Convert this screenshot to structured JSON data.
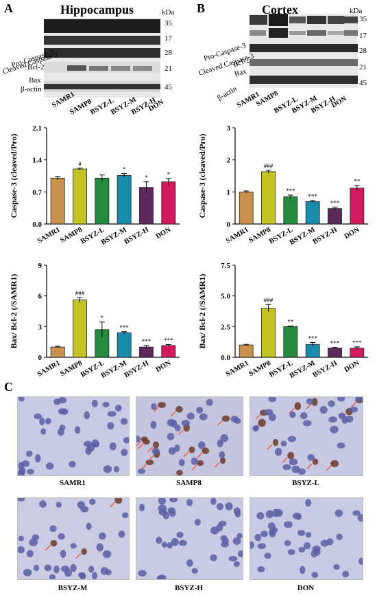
{
  "panels": {
    "A": {
      "letter": "A",
      "title": "Hippocampus"
    },
    "B": {
      "letter": "B",
      "title": "Cortex"
    },
    "C": {
      "letter": "C"
    }
  },
  "western_blot": {
    "unit": "kDa",
    "bands": [
      "Pro-Caspase-3",
      "Cleaved Caspase-3",
      "Bcl-2",
      "Bax",
      "β-actin"
    ],
    "mw": [
      "35",
      "17",
      "28",
      "21",
      "45"
    ],
    "lanes": [
      "SAMR1",
      "SAMP8",
      "BSYZ-L",
      "BSYZ-M",
      "BSYZ-H",
      "DON"
    ]
  },
  "chart_data": [
    {
      "id": "A-caspase",
      "type": "bar",
      "ylabel": "Caspase-3 (cleaved/Pro)",
      "ylim": [
        0,
        2.1
      ],
      "yticks": [
        "0.0",
        "0.7",
        "1.4",
        "2.1"
      ],
      "categories": [
        "SAMR1",
        "SAMP8",
        "BSYZ-L",
        "BSYZ-M",
        "BSYZ-H",
        "DON"
      ],
      "values": [
        1.0,
        1.2,
        1.0,
        1.06,
        0.8,
        0.92
      ],
      "errors": [
        0.04,
        0.02,
        0.07,
        0.04,
        0.12,
        0.07
      ],
      "marks": [
        "",
        "#",
        "",
        "*",
        "*",
        "*"
      ]
    },
    {
      "id": "B-caspase",
      "type": "bar",
      "ylabel": "Caspase-3 (cleaved/Pro)",
      "ylim": [
        0,
        3
      ],
      "yticks": [
        "0",
        "1",
        "2",
        "3"
      ],
      "categories": [
        "SAMR1",
        "SAMP8",
        "BSYZ-L",
        "BSYZ-M",
        "BSYZ-H",
        "DON"
      ],
      "values": [
        1.0,
        1.63,
        0.85,
        0.7,
        0.48,
        1.12
      ],
      "errors": [
        0.03,
        0.05,
        0.05,
        0.03,
        0.05,
        0.08
      ],
      "marks": [
        "",
        "###",
        "***",
        "***",
        "***",
        "**"
      ]
    },
    {
      "id": "A-bax",
      "type": "bar",
      "ylabel": "Bax/ Bcl-2 (/SAMR1)",
      "ylim": [
        0,
        9
      ],
      "yticks": [
        "0",
        "3",
        "6",
        "9"
      ],
      "categories": [
        "SAMR1",
        "SAMP8",
        "BSYZ-L",
        "BSYZ-M",
        "BSYZ-H",
        "DON"
      ],
      "values": [
        1.0,
        5.6,
        2.7,
        2.4,
        1.0,
        1.15
      ],
      "errors": [
        0.08,
        0.25,
        0.75,
        0.1,
        0.15,
        0.1
      ],
      "marks": [
        "",
        "###",
        "*",
        "***",
        "***",
        "***"
      ]
    },
    {
      "id": "B-bax",
      "type": "bar",
      "ylabel": "Bax/ Bcl-2 (/SAMR1)",
      "ylim": [
        0,
        7.5
      ],
      "yticks": [
        "0.0",
        "2.5",
        "5.0",
        "7.5"
      ],
      "categories": [
        "SAMR1",
        "SAMP8",
        "BSYZ-L",
        "BSYZ-M",
        "BSYZ-H",
        "DON"
      ],
      "values": [
        1.0,
        4.0,
        2.5,
        1.05,
        0.75,
        0.75
      ],
      "errors": [
        0.05,
        0.3,
        0.05,
        0.15,
        0.05,
        0.1
      ],
      "marks": [
        "",
        "###",
        "**",
        "***",
        "***",
        "***"
      ]
    }
  ],
  "bar_colors": [
    "#c8914e",
    "#c3c323",
    "#238a3e",
    "#1a8baa",
    "#5c2a5c",
    "#d21a5f"
  ],
  "micrographs": [
    "SAMR1",
    "SAMP8",
    "BSYZ-L",
    "BSYZ-M",
    "BSYZ-H",
    "DON"
  ]
}
